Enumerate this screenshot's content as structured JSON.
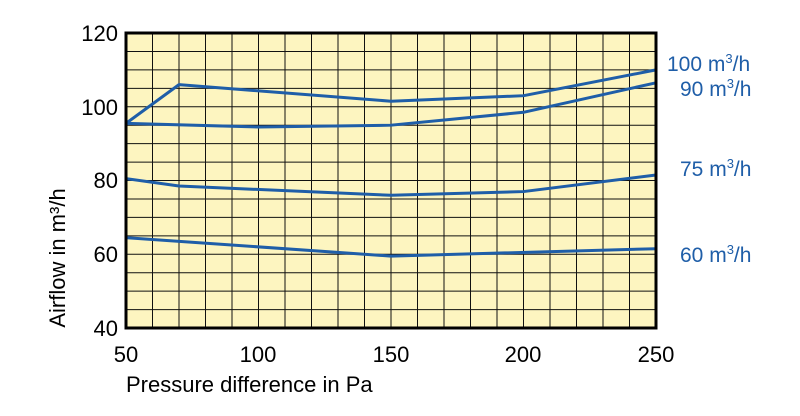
{
  "chart_data": {
    "type": "line",
    "title": "",
    "xlabel": "Pressure difference in Pa",
    "ylabel": "Airflow in m³/h",
    "xlim": [
      50,
      250
    ],
    "ylim": [
      40,
      120
    ],
    "x_ticks": [
      50,
      100,
      150,
      200,
      250
    ],
    "y_ticks": [
      40,
      60,
      80,
      100,
      120
    ],
    "x_tick_labels": [
      "50",
      "100",
      "150",
      "200",
      "250"
    ],
    "y_tick_labels": [
      "40",
      "60",
      "80",
      "100",
      "120"
    ],
    "grid": true,
    "minor_grid_x_step": 10,
    "minor_grid_y_step": 5,
    "background_color": "#fdf5c0",
    "line_color": "#1f5ea8",
    "label_color": "#1f5ea8",
    "series": [
      {
        "name": "100 m³/h",
        "label_main": "100 m",
        "label_sup": "3",
        "label_tail": "/h",
        "points": [
          [
            50,
            95.5
          ],
          [
            70,
            106
          ],
          [
            150,
            101.5
          ],
          [
            200,
            103
          ],
          [
            250,
            110
          ]
        ]
      },
      {
        "name": "90 m³/h",
        "label_main": "90 m",
        "label_sup": "3",
        "label_tail": "/h",
        "points": [
          [
            50,
            95.5
          ],
          [
            100,
            94.5
          ],
          [
            150,
            95
          ],
          [
            200,
            98.5
          ],
          [
            250,
            106.5
          ]
        ]
      },
      {
        "name": "75 m³/h",
        "label_main": "75 m",
        "label_sup": "3",
        "label_tail": "/h",
        "points": [
          [
            50,
            80.5
          ],
          [
            70,
            78.5
          ],
          [
            150,
            76
          ],
          [
            200,
            77
          ],
          [
            250,
            81.5
          ]
        ]
      },
      {
        "name": "60 m³/h",
        "label_main": "60 m",
        "label_sup": "3",
        "label_tail": "/h",
        "points": [
          [
            50,
            64.5
          ],
          [
            150,
            59.5
          ],
          [
            250,
            61.5
          ]
        ]
      }
    ]
  }
}
